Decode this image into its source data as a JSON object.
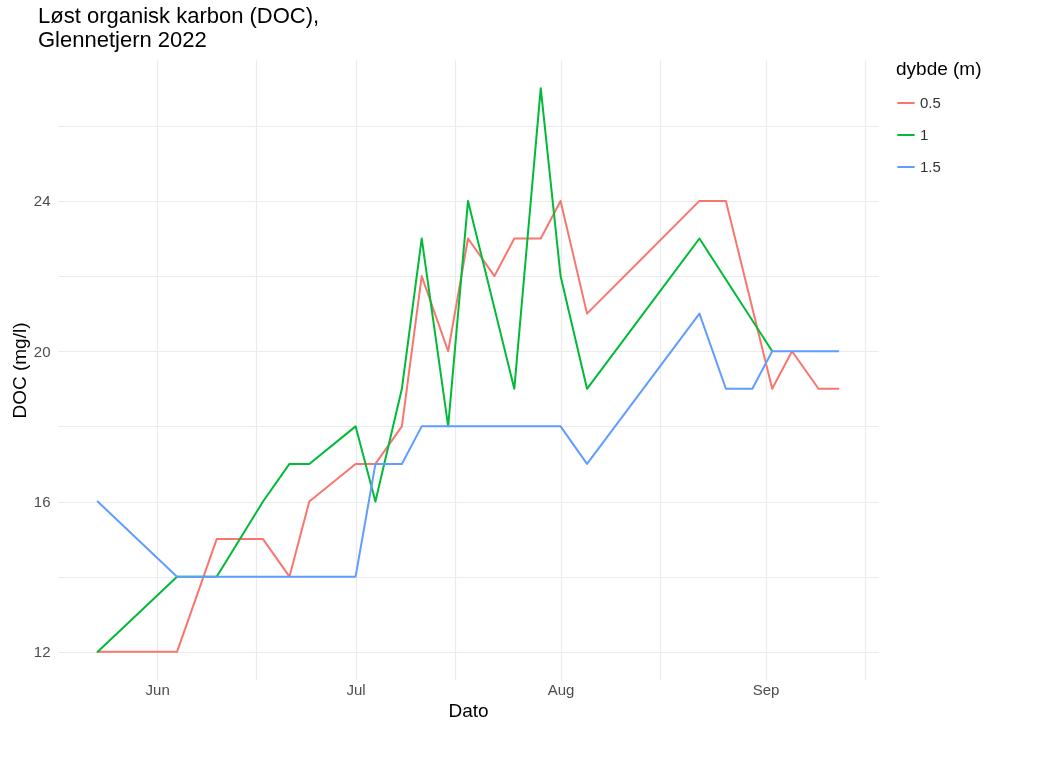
{
  "chart_data": {
    "type": "line",
    "title": "Løst organisk karbon (DOC),\n    Glennetjern 2022",
    "xlabel": "Dato",
    "ylabel": "DOC (mg/l)",
    "legend_title": "dybde (m)",
    "legend": "right",
    "grid": true,
    "line_style": "solid",
    "xlim": [
      "2022-05-17",
      "2022-09-18"
    ],
    "xticks": [
      {
        "value": "2022-06-01",
        "label": "Jun"
      },
      {
        "value": "2022-06-16",
        "label": null
      },
      {
        "value": "2022-07-01",
        "label": "Jul"
      },
      {
        "value": "2022-07-16",
        "label": null
      },
      {
        "value": "2022-08-01",
        "label": "Aug"
      },
      {
        "value": "2022-08-16",
        "label": null
      },
      {
        "value": "2022-09-01",
        "label": "Sep"
      },
      {
        "value": "2022-09-16",
        "label": null
      }
    ],
    "ylim": [
      11.25,
      27.75
    ],
    "yticks": [
      12,
      {
        "value": 14,
        "label": null
      },
      16,
      {
        "value": 18,
        "label": null
      },
      20,
      {
        "value": 22,
        "label": null
      },
      24,
      {
        "value": 26,
        "label": null
      }
    ],
    "series": [
      {
        "name": "0.5",
        "color": "#f8766d",
        "x": [
          "2022-05-23",
          "2022-06-04",
          "2022-06-10",
          "2022-06-17",
          "2022-06-21",
          "2022-06-24",
          "2022-07-01",
          "2022-07-04",
          "2022-07-08",
          "2022-07-11",
          "2022-07-15",
          "2022-07-18",
          "2022-07-22",
          "2022-07-25",
          "2022-07-29",
          "2022-08-01",
          "2022-08-05",
          "2022-08-22",
          "2022-08-26",
          "2022-09-02",
          "2022-09-05",
          "2022-09-09",
          "2022-09-12"
        ],
        "values": [
          12,
          12,
          15,
          15,
          14,
          16,
          17,
          17,
          18,
          22,
          20,
          23,
          22,
          23,
          23,
          24,
          21,
          24,
          24,
          19,
          20,
          19,
          19
        ]
      },
      {
        "name": "1",
        "color": "#00ba38",
        "x": [
          "2022-05-23",
          "2022-06-04",
          "2022-06-10",
          "2022-06-17",
          "2022-06-21",
          "2022-06-24",
          "2022-07-01",
          "2022-07-04",
          "2022-07-08",
          "2022-07-11",
          "2022-07-15",
          "2022-07-18",
          "2022-07-25",
          "2022-07-29",
          "2022-08-01",
          "2022-08-05",
          "2022-08-22",
          "2022-09-02"
        ],
        "values": [
          12,
          14,
          14,
          16,
          17,
          17,
          18,
          16,
          19,
          23,
          18,
          24,
          19,
          27,
          22,
          19,
          23,
          20
        ]
      },
      {
        "name": "1.5",
        "color": "#619cff",
        "x": [
          "2022-05-23",
          "2022-06-04",
          "2022-07-01",
          "2022-07-04",
          "2022-07-08",
          "2022-07-11",
          "2022-08-01",
          "2022-08-05",
          "2022-08-22",
          "2022-08-26",
          "2022-08-30",
          "2022-09-02",
          "2022-09-12"
        ],
        "values": [
          16,
          14,
          14,
          17,
          17,
          18,
          18,
          17,
          21,
          19,
          19,
          20,
          20
        ]
      }
    ]
  }
}
